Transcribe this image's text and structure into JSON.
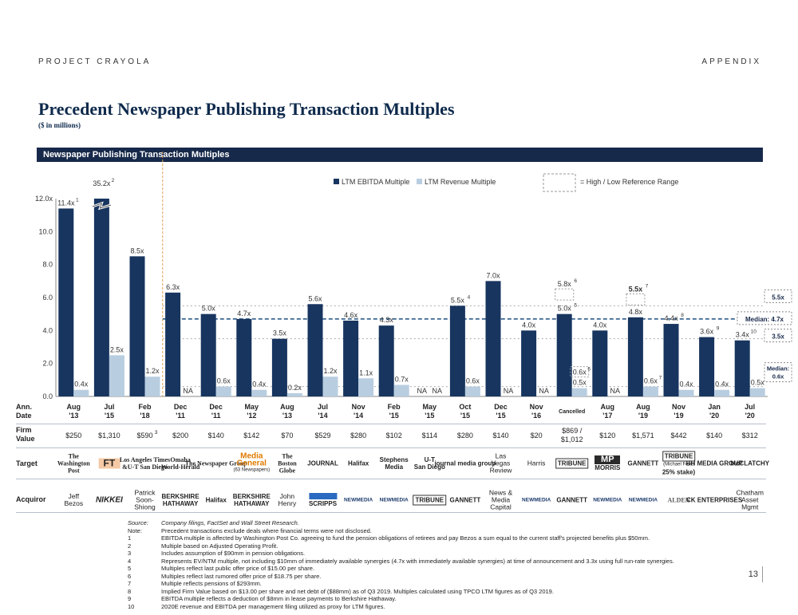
{
  "header": {
    "left": "PROJECT CRAYOLA",
    "right": "APPENDIX"
  },
  "title": "Precedent Newspaper Publishing Transaction Multiples",
  "subtitle": "($ in millions)",
  "banner": "Newspaper Publishing Transaction Multiples",
  "colors": {
    "ebitda": "#17355f",
    "revenue": "#b8cde0",
    "median": "#1d4f80",
    "range": "#999999"
  },
  "chart_data": {
    "type": "bar",
    "legend": [
      "LTM EBITDA Multiple",
      "LTM Revenue Multiple",
      "= High / Low Reference Range"
    ],
    "ylim": [
      0,
      12
    ],
    "yticks": [
      "0.0",
      "2.0",
      "4.0",
      "6.0",
      "8.0",
      "10.0",
      "12.0x"
    ],
    "dates": [
      [
        "Aug",
        "'13"
      ],
      [
        "Jul",
        "'15"
      ],
      [
        "Feb",
        "'18"
      ],
      [
        "Dec",
        "'11"
      ],
      [
        "Dec",
        "'11"
      ],
      [
        "May",
        "'12"
      ],
      [
        "Aug",
        "'13"
      ],
      [
        "Jul",
        "'14"
      ],
      [
        "Nov",
        "'14"
      ],
      [
        "Feb",
        "'15"
      ],
      [
        "May",
        "'15"
      ],
      [
        "Oct",
        "'15"
      ],
      [
        "Dec",
        "'15"
      ],
      [
        "Nov",
        "'16"
      ],
      [
        "Cancelled",
        ""
      ],
      [
        "Aug",
        "'17"
      ],
      [
        "Aug",
        "'19"
      ],
      [
        "Nov",
        "'19"
      ],
      [
        "Jan",
        "'20"
      ],
      [
        "Jul",
        "'20"
      ]
    ],
    "ebitda": [
      11.4,
      35.2,
      8.5,
      6.3,
      5.0,
      4.7,
      3.5,
      5.6,
      4.6,
      4.3,
      null,
      5.5,
      7.0,
      4.0,
      5.0,
      4.0,
      4.8,
      4.4,
      3.6,
      3.4
    ],
    "ebitda_labels": [
      "11.4x",
      "35.2x",
      "8.5x",
      "6.3x",
      "5.0x",
      "4.7x",
      "3.5x",
      "5.6x",
      "4.6x",
      "4.3x",
      "NA",
      "5.5x",
      "7.0x",
      "4.0x",
      "5.0x",
      "4.0x",
      "4.8x",
      "4.4x",
      "3.6x",
      "3.4x"
    ],
    "ebitda_notes": [
      "1",
      "2",
      "",
      "",
      "",
      "",
      "",
      "",
      "",
      "",
      "",
      "4",
      "",
      "",
      "5",
      "",
      "",
      "8",
      "9",
      "10"
    ],
    "revenue": [
      0.4,
      2.5,
      1.2,
      null,
      0.6,
      0.4,
      0.2,
      1.2,
      1.1,
      0.7,
      null,
      0.6,
      null,
      null,
      0.5,
      null,
      0.6,
      0.4,
      0.4,
      0.5
    ],
    "revenue_labels": [
      "0.4x",
      "2.5x",
      "1.2x",
      "NA",
      "0.6x",
      "0.4x",
      "0.2x",
      "1.2x",
      "1.1x",
      "0.7x",
      "NA",
      "0.6x",
      "NA",
      "NA",
      "0.5x",
      "NA",
      "0.6x",
      "0.4x",
      "0.4x",
      "0.5x"
    ],
    "revenue_notes": [
      "",
      "",
      "",
      "",
      "",
      "",
      "",
      "",
      "",
      "",
      "",
      "",
      "",
      "",
      "",
      "",
      "7",
      "",
      "",
      ""
    ],
    "range_high": [
      null,
      null,
      null,
      null,
      null,
      null,
      null,
      null,
      null,
      null,
      null,
      null,
      null,
      null,
      5.8,
      null,
      5.5,
      null,
      null,
      null
    ],
    "range_high_labels": [
      "",
      "",
      "",
      "",
      "",
      "",
      "",
      "",
      "",
      "",
      "",
      "",
      "",
      "",
      "5.8x",
      "",
      "5.5x",
      "",
      "",
      ""
    ],
    "range_high_notes": [
      "",
      "",
      "",
      "",
      "",
      "",
      "",
      "",
      "",
      "",
      "",
      "",
      "",
      "",
      "6",
      "",
      "7",
      "",
      "",
      ""
    ],
    "range_low": [
      null,
      null,
      null,
      null,
      null,
      null,
      null,
      null,
      null,
      null,
      null,
      null,
      null,
      null,
      0.6,
      null,
      null,
      null,
      null,
      null
    ],
    "range_low_labels": [
      "",
      "",
      "",
      "",
      "",
      "",
      "",
      "",
      "",
      "",
      "",
      "",
      "",
      "",
      "0.6x",
      "",
      "",
      "",
      "",
      ""
    ],
    "range_low_notes": [
      "",
      "",
      "",
      "",
      "",
      "",
      "",
      "",
      "",
      "",
      "",
      "",
      "",
      "",
      "6",
      "",
      "",
      "",
      "",
      ""
    ],
    "median_ebitda": 4.7,
    "median_ebitda_label": "Median: 4.7x",
    "ebitda_high": 5.5,
    "ebitda_high_label": "5.5x",
    "ebitda_low": 3.5,
    "ebitda_low_label": "3.5x",
    "median_revenue": 0.6,
    "median_revenue_label": [
      "Median:",
      "0.6x"
    ],
    "firm_value": [
      "$250",
      "$1,310",
      "$590",
      "$200",
      "$140",
      "$142",
      "$70",
      "$529",
      "$280",
      "$102",
      "$114",
      "$280",
      "$140",
      "$20",
      "$869 / $1,012",
      "$120",
      "$1,571",
      "$442",
      "$140",
      "$312"
    ],
    "firm_value_notes": [
      "",
      "",
      "3",
      "",
      "",
      "",
      "",
      "",
      "",
      "",
      "",
      "",
      "",
      "",
      "",
      "",
      "",
      "",
      "",
      ""
    ]
  },
  "row_labels": {
    "date": [
      "Ann.",
      "Date"
    ],
    "firm_value": [
      "Firm",
      "Value"
    ],
    "target": "Target",
    "acquiror": "Acquiror"
  },
  "targets": [
    {
      "name": "washington-post-logo",
      "lines": [
        "The",
        "Washington",
        "Post"
      ]
    },
    {
      "name": "ft-logo",
      "lines": [
        "FT"
      ]
    },
    {
      "name": "la-times-ut-logo",
      "lines": [
        "Los Angeles Times",
        "&U-T San Diego"
      ]
    },
    {
      "name": "omaha-world-herald-logo",
      "lines": [
        "Omaha",
        "World-Herald"
      ]
    },
    {
      "name": "newspaper-group-logo",
      "lines": [
        "The Newspaper Group"
      ]
    },
    {
      "name": "media-general-logo",
      "lines": [
        "Media",
        "General",
        "(63 Newspapers)"
      ]
    },
    {
      "name": "boston-globe-logo",
      "lines": [
        "The",
        "Boston",
        "Globe"
      ]
    },
    {
      "name": "journal-logo",
      "lines": [
        "JOURNAL"
      ]
    },
    {
      "name": "halifax-logo",
      "lines": [
        "Halifax"
      ]
    },
    {
      "name": "stephens-media-logo",
      "lines": [
        "Stephens",
        "Media"
      ]
    },
    {
      "name": "ut-san-diego-logo",
      "lines": [
        "U-T",
        "San Diego"
      ]
    },
    {
      "name": "journal-media-group-logo",
      "lines": [
        "journal media group"
      ]
    },
    {
      "name": "las-vegas-review-text",
      "lines": [
        "Las",
        "Vegas",
        "Review"
      ]
    },
    {
      "name": "harris-text",
      "lines": [
        "Harris"
      ]
    },
    {
      "name": "tribune-logo",
      "lines": [
        "TRIBUNE"
      ]
    },
    {
      "name": "morris-logo",
      "lines": [
        "MP",
        "MORRIS"
      ]
    },
    {
      "name": "gannett-logo",
      "lines": [
        "GANNETT"
      ]
    },
    {
      "name": "tribune-ferro-logo",
      "lines": [
        "TRIBUNE",
        "(Michael Ferro",
        "25% stake)"
      ]
    },
    {
      "name": "bh-media-logo",
      "lines": [
        "BH MEDIA GROUP"
      ]
    },
    {
      "name": "mcclatchy-logo",
      "lines": [
        "McCLATCHY"
      ]
    }
  ],
  "acquirors": [
    {
      "name": "jeff-bezos-text",
      "lines": [
        "Jeff",
        "Bezos"
      ]
    },
    {
      "name": "nikkei-logo",
      "lines": [
        "NIKKEI"
      ]
    },
    {
      "name": "patrick-soon-shiong-text",
      "lines": [
        "Patrick",
        "Soon-",
        "Shiong"
      ]
    },
    {
      "name": "berkshire-hathaway-logo",
      "lines": [
        "BERKSHIRE",
        "HATHAWAY"
      ]
    },
    {
      "name": "halifax-acq-logo",
      "lines": [
        "Halifax"
      ]
    },
    {
      "name": "berkshire-hathaway-2-logo",
      "lines": [
        "BERKSHIRE",
        "HATHAWAY"
      ]
    },
    {
      "name": "john-henry-text",
      "lines": [
        "John",
        "Henry"
      ]
    },
    {
      "name": "scripps-logo",
      "lines": [
        "SCRIPPS"
      ]
    },
    {
      "name": "new-media-logo",
      "lines": [
        "NEWMEDIA"
      ]
    },
    {
      "name": "new-media-2-logo",
      "lines": [
        "NEWMEDIA"
      ]
    },
    {
      "name": "tribune-acq-logo",
      "lines": [
        "TRIBUNE"
      ]
    },
    {
      "name": "gannett-acq-logo",
      "lines": [
        "GANNETT"
      ]
    },
    {
      "name": "news-media-capital-text",
      "lines": [
        "News &",
        "Media",
        "Capital"
      ]
    },
    {
      "name": "new-media-3-logo",
      "lines": [
        "NEWMEDIA"
      ]
    },
    {
      "name": "gannett-acq-2-logo",
      "lines": [
        "GANNETT"
      ]
    },
    {
      "name": "new-media-4-logo",
      "lines": [
        "NEWMEDIA"
      ]
    },
    {
      "name": "new-media-5-logo",
      "lines": [
        "NEWMEDIA"
      ]
    },
    {
      "name": "alden-logo",
      "lines": [
        "ALDEN"
      ]
    },
    {
      "name": "ck-enterprises-logo",
      "lines": [
        "CK ENTERPRISES"
      ]
    },
    {
      "name": "chatham-text",
      "lines": [
        "Chatham",
        "Asset",
        "Mgmt"
      ]
    }
  ],
  "notes": [
    {
      "k": "Source:",
      "t": "Company filings, FactSet and Wall Street Research.",
      "italic": true
    },
    {
      "k": "Note:",
      "t": "Precedent transactions exclude deals where financial terms were not disclosed."
    },
    {
      "k": "1",
      "t": "EBITDA multiple is affected by Washington Post Co. agreeing to fund the pension obligations of retirees and pay Bezos a sum equal to the current staff's projected benefits plus $50mm."
    },
    {
      "k": "2",
      "t": "Multiple based on Adjusted Operating Profit."
    },
    {
      "k": "3",
      "t": "Includes assumption of $90mm in pension obligations."
    },
    {
      "k": "4",
      "t": "Represents EV/NTM multiple, not including $10mm of immediately available synergies (4.7x with immediately available synergies) at time of announcement and 3.3x using full run-rate synergies."
    },
    {
      "k": "5",
      "t": "Multiples reflect last public offer price of $15.00 per share."
    },
    {
      "k": "6",
      "t": "Multiples reflect last rumored offer price of $18.75 per share."
    },
    {
      "k": "7",
      "t": "Multiple reflects pensions of $293mm."
    },
    {
      "k": "8",
      "t": "Implied Firm Value based on $13.00 per share and net debt of ($88mm) as of Q3 2019. Multiples calculated using TPCO LTM figures as of Q3 2019."
    },
    {
      "k": "9",
      "t": "EBITDA multiple reflects a deduction of $8mm in lease payments to Berkshire Hathaway."
    },
    {
      "k": "10",
      "t": "2020E revenue and EBITDA per management filing utilized as proxy for LTM figures."
    }
  ],
  "page_number": "13"
}
